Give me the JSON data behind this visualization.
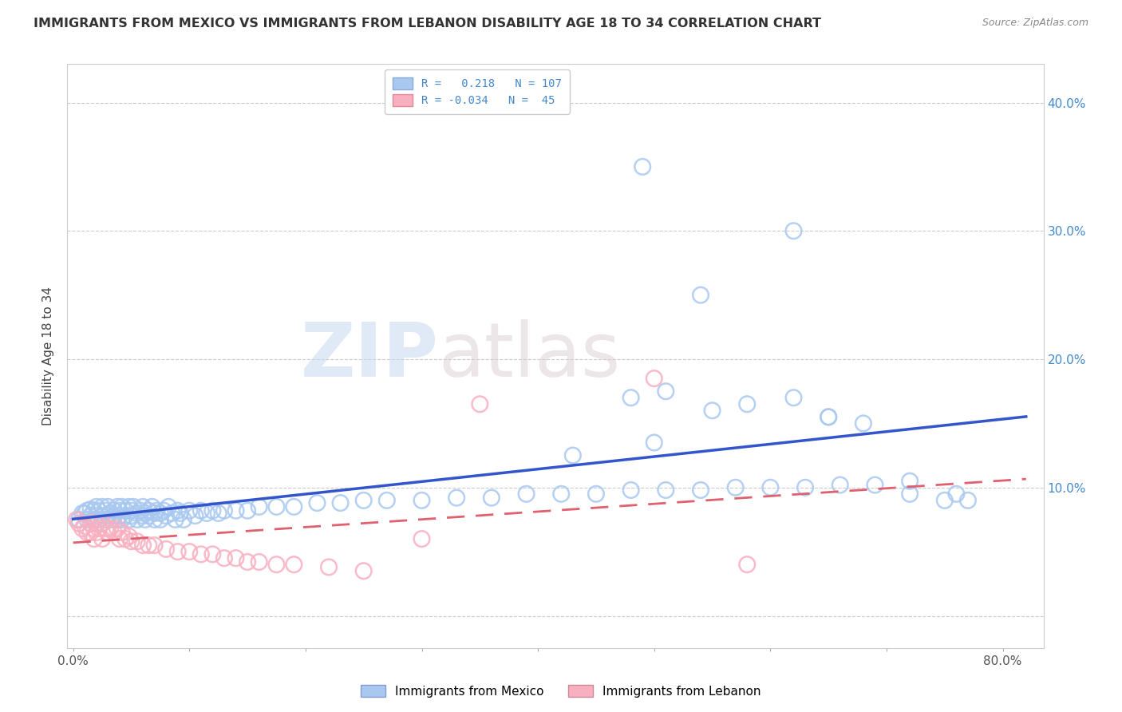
{
  "title": "IMMIGRANTS FROM MEXICO VS IMMIGRANTS FROM LEBANON DISABILITY AGE 18 TO 34 CORRELATION CHART",
  "source": "Source: ZipAtlas.com",
  "ylabel": "Disability Age 18 to 34",
  "xlim": [
    -0.005,
    0.835
  ],
  "ylim": [
    -0.025,
    0.43
  ],
  "mexico_R": 0.218,
  "mexico_N": 107,
  "lebanon_R": -0.034,
  "lebanon_N": 45,
  "mexico_color": "#a8c8f0",
  "lebanon_color": "#f8b0c0",
  "mexico_line_color": "#3355cc",
  "lebanon_line_color": "#e06070",
  "watermark_zip": "ZIP",
  "watermark_atlas": "atlas",
  "x_ticks": [
    0.0,
    0.1,
    0.2,
    0.3,
    0.4,
    0.5,
    0.6,
    0.7,
    0.8
  ],
  "y_ticks": [
    0.0,
    0.1,
    0.2,
    0.3,
    0.4
  ],
  "mexico_x": [
    0.005,
    0.008,
    0.01,
    0.012,
    0.012,
    0.015,
    0.015,
    0.018,
    0.018,
    0.02,
    0.02,
    0.022,
    0.022,
    0.025,
    0.025,
    0.028,
    0.028,
    0.03,
    0.03,
    0.032,
    0.033,
    0.035,
    0.035,
    0.038,
    0.038,
    0.04,
    0.04,
    0.042,
    0.042,
    0.045,
    0.045,
    0.048,
    0.048,
    0.05,
    0.05,
    0.052,
    0.055,
    0.055,
    0.058,
    0.06,
    0.06,
    0.062,
    0.062,
    0.065,
    0.065,
    0.068,
    0.07,
    0.07,
    0.072,
    0.075,
    0.075,
    0.078,
    0.08,
    0.082,
    0.085,
    0.088,
    0.09,
    0.092,
    0.095,
    0.1,
    0.105,
    0.11,
    0.115,
    0.12,
    0.125,
    0.13,
    0.14,
    0.15,
    0.16,
    0.175,
    0.19,
    0.21,
    0.23,
    0.25,
    0.27,
    0.3,
    0.33,
    0.36,
    0.39,
    0.42,
    0.45,
    0.48,
    0.51,
    0.54,
    0.57,
    0.6,
    0.63,
    0.66,
    0.69,
    0.72,
    0.48,
    0.51,
    0.55,
    0.58,
    0.43,
    0.62,
    0.65,
    0.5,
    0.54,
    0.62,
    0.65,
    0.68,
    0.72,
    0.75,
    0.76,
    0.77,
    0.49
  ],
  "mexico_y": [
    0.075,
    0.08,
    0.08,
    0.075,
    0.082,
    0.078,
    0.083,
    0.075,
    0.082,
    0.078,
    0.085,
    0.075,
    0.082,
    0.078,
    0.085,
    0.075,
    0.082,
    0.078,
    0.085,
    0.08,
    0.075,
    0.082,
    0.078,
    0.085,
    0.075,
    0.082,
    0.078,
    0.085,
    0.075,
    0.082,
    0.078,
    0.085,
    0.075,
    0.082,
    0.078,
    0.085,
    0.08,
    0.075,
    0.082,
    0.078,
    0.085,
    0.08,
    0.075,
    0.082,
    0.078,
    0.085,
    0.08,
    0.075,
    0.082,
    0.08,
    0.075,
    0.082,
    0.078,
    0.085,
    0.08,
    0.075,
    0.082,
    0.08,
    0.075,
    0.082,
    0.078,
    0.082,
    0.08,
    0.082,
    0.08,
    0.082,
    0.082,
    0.082,
    0.085,
    0.085,
    0.085,
    0.088,
    0.088,
    0.09,
    0.09,
    0.09,
    0.092,
    0.092,
    0.095,
    0.095,
    0.095,
    0.098,
    0.098,
    0.098,
    0.1,
    0.1,
    0.1,
    0.102,
    0.102,
    0.105,
    0.17,
    0.175,
    0.16,
    0.165,
    0.125,
    0.17,
    0.155,
    0.135,
    0.25,
    0.3,
    0.155,
    0.15,
    0.095,
    0.09,
    0.095,
    0.09,
    0.35
  ],
  "lebanon_x": [
    0.003,
    0.005,
    0.008,
    0.01,
    0.012,
    0.015,
    0.015,
    0.018,
    0.018,
    0.02,
    0.02,
    0.022,
    0.025,
    0.025,
    0.028,
    0.03,
    0.032,
    0.035,
    0.038,
    0.04,
    0.042,
    0.045,
    0.048,
    0.05,
    0.055,
    0.06,
    0.065,
    0.07,
    0.08,
    0.09,
    0.1,
    0.11,
    0.12,
    0.13,
    0.14,
    0.15,
    0.16,
    0.175,
    0.19,
    0.22,
    0.25,
    0.3,
    0.35,
    0.5,
    0.58
  ],
  "lebanon_y": [
    0.075,
    0.072,
    0.068,
    0.07,
    0.065,
    0.072,
    0.065,
    0.068,
    0.06,
    0.072,
    0.065,
    0.068,
    0.072,
    0.06,
    0.068,
    0.065,
    0.068,
    0.065,
    0.068,
    0.06,
    0.065,
    0.06,
    0.062,
    0.058,
    0.058,
    0.055,
    0.055,
    0.055,
    0.052,
    0.05,
    0.05,
    0.048,
    0.048,
    0.045,
    0.045,
    0.042,
    0.042,
    0.04,
    0.04,
    0.038,
    0.035,
    0.06,
    0.165,
    0.185,
    0.04
  ]
}
